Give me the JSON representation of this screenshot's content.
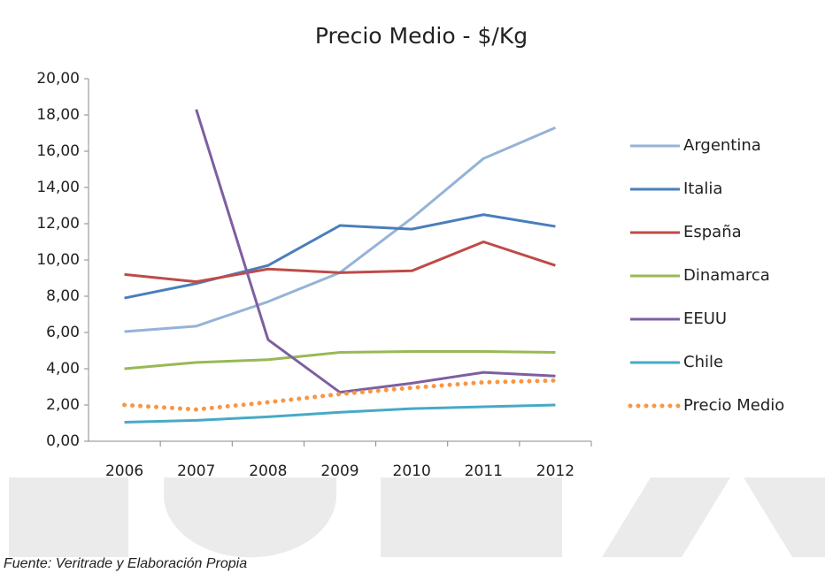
{
  "chart_data": {
    "type": "line",
    "title": "Precio Medio - $/Kg",
    "categories": [
      "2006",
      "2007",
      "2008",
      "2009",
      "2010",
      "2011",
      "2012"
    ],
    "series": [
      {
        "name": "Argentina",
        "color": "#95b3d7",
        "values": [
          6.05,
          6.35,
          7.7,
          9.3,
          12.3,
          15.6,
          17.3
        ]
      },
      {
        "name": "Italia",
        "color": "#4a7ebb",
        "values": [
          7.9,
          8.7,
          9.7,
          11.9,
          11.7,
          12.5,
          11.85
        ]
      },
      {
        "name": "España",
        "color": "#be4b48",
        "values": [
          9.2,
          8.8,
          9.5,
          9.3,
          9.4,
          11.0,
          9.7
        ]
      },
      {
        "name": "Dinamarca",
        "color": "#98b954",
        "values": [
          4.0,
          4.35,
          4.5,
          4.9,
          4.95,
          4.95,
          4.9
        ]
      },
      {
        "name": "EEUU",
        "color": "#7d5fa0",
        "values": [
          null,
          18.3,
          5.6,
          2.7,
          3.2,
          3.8,
          3.6
        ]
      },
      {
        "name": "Chile",
        "color": "#46aac5",
        "values": [
          1.05,
          1.15,
          1.35,
          1.6,
          1.8,
          1.9,
          2.0
        ]
      },
      {
        "name": "Precio Medio",
        "color": "#f79646",
        "style": "dotted",
        "values": [
          2.0,
          1.75,
          2.15,
          2.6,
          2.95,
          3.25,
          3.35
        ]
      }
    ],
    "ylim": [
      0,
      20
    ],
    "yticks": [
      {
        "value": 0,
        "label": "0,00"
      },
      {
        "value": 2,
        "label": "2,00"
      },
      {
        "value": 4,
        "label": "4,00"
      },
      {
        "value": 6,
        "label": "6,00"
      },
      {
        "value": 8,
        "label": "8,00"
      },
      {
        "value": 10,
        "label": "10,00"
      },
      {
        "value": 12,
        "label": "12,00"
      },
      {
        "value": 14,
        "label": "14,00"
      },
      {
        "value": 16,
        "label": "16,00"
      },
      {
        "value": 18,
        "label": "18,00"
      },
      {
        "value": 20,
        "label": "20,00"
      }
    ],
    "grid": false,
    "legend": "right",
    "caption": "Fuente: Veritrade y Elaboración Propia"
  }
}
